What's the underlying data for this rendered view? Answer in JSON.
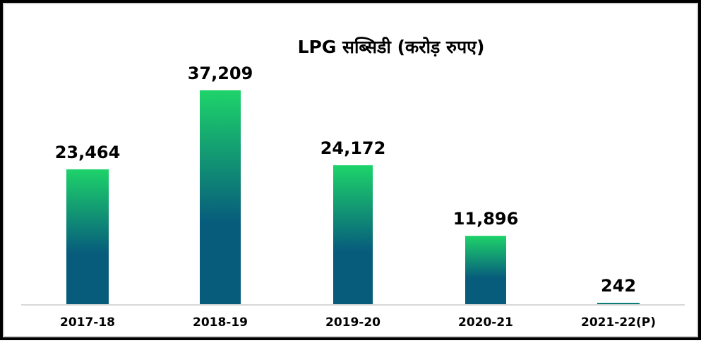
{
  "chart_data": {
    "type": "bar",
    "title": "LPG सब्सिडी (करोड़ रुपए)",
    "categories": [
      "2017-18",
      "2018-19",
      "2019-20",
      "2020-21",
      "2021-22(P)"
    ],
    "values": [
      23464,
      37209,
      24172,
      11896,
      242
    ],
    "value_labels": [
      "23,464",
      "37,209",
      "24,172",
      "11,896",
      "242"
    ],
    "ylim": [
      0,
      37209
    ],
    "grid": false,
    "legend": "none",
    "colors": {
      "bar_top": "#1ed36a",
      "bar_bottom": "#075c7c",
      "axis": "#cccccc",
      "text": "#000000"
    }
  }
}
